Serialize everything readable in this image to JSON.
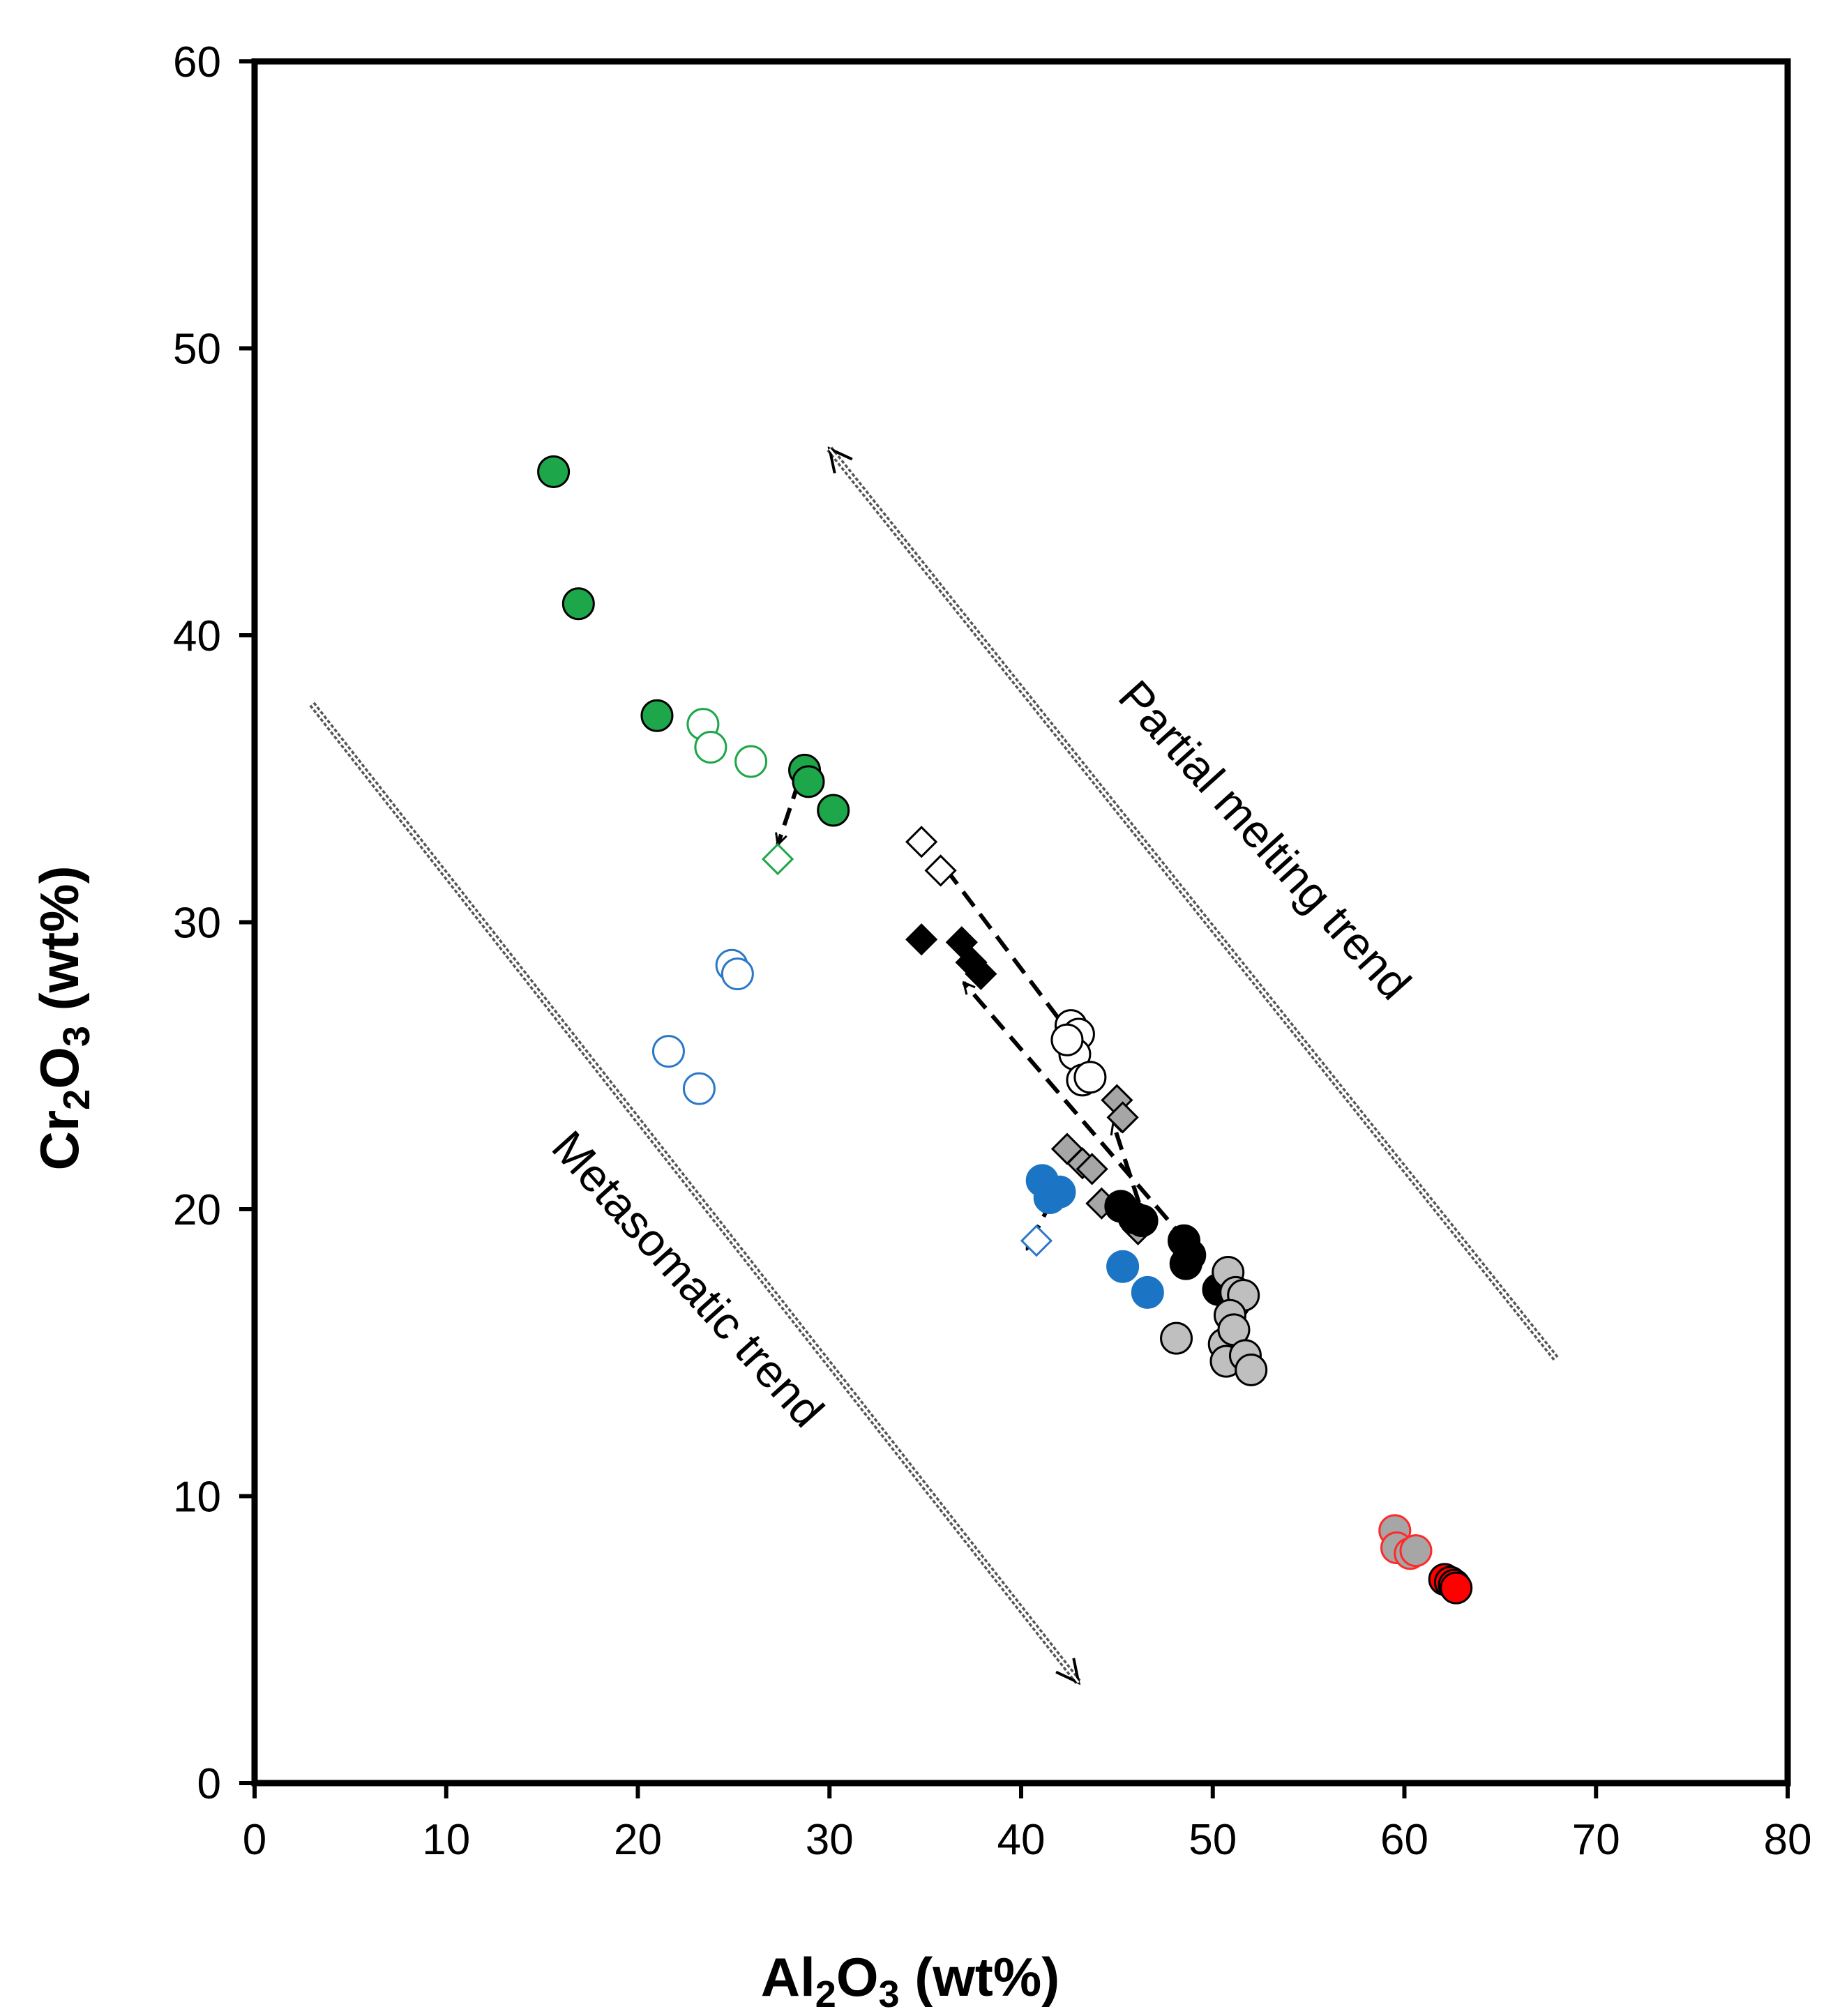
{
  "chart_data": {
    "type": "scatter",
    "title": "",
    "xlabel": {
      "main": "Al",
      "sub": "2",
      "tail_o": "O",
      "sub2": "3",
      "tail": " (wt%)"
    },
    "ylabel": {
      "main": "Cr",
      "sub": "2",
      "tail_o": "O",
      "sub2": "3",
      "tail": " (wt%)"
    },
    "xlim": [
      0,
      80
    ],
    "ylim": [
      0,
      60
    ],
    "x_ticks": [
      0,
      10,
      20,
      30,
      40,
      50,
      60,
      70,
      80
    ],
    "y_ticks": [
      0,
      10,
      20,
      30,
      40,
      50,
      60
    ],
    "x_tick_labels": [
      "0",
      "10",
      "20",
      "30",
      "40",
      "50",
      "60",
      "70",
      "80"
    ],
    "y_tick_labels": [
      "0",
      "10",
      "20",
      "30",
      "40",
      "50",
      "60"
    ],
    "grid": false,
    "legend": "none",
    "series": [
      {
        "name": "green-filled-circles",
        "marker": "circle",
        "fill": "#1ea64a",
        "stroke": "#000000",
        "points": [
          [
            15.6,
            45.7
          ],
          [
            16.9,
            41.1
          ],
          [
            21.0,
            37.2
          ],
          [
            28.7,
            35.3
          ],
          [
            28.9,
            34.9
          ],
          [
            30.2,
            33.9
          ]
        ]
      },
      {
        "name": "green-open-circles",
        "marker": "circle",
        "fill": "#ffffff",
        "stroke": "#1ea64a",
        "points": [
          [
            23.4,
            36.9
          ],
          [
            23.8,
            36.1
          ],
          [
            25.9,
            35.6
          ]
        ]
      },
      {
        "name": "green-open-diamond",
        "marker": "diamond",
        "fill": "#ffffff",
        "stroke": "#1ea64a",
        "points": [
          [
            27.3,
            32.2
          ]
        ]
      },
      {
        "name": "blue-open-circles",
        "marker": "circle",
        "fill": "#ffffff",
        "stroke": "#2c78c8",
        "points": [
          [
            24.9,
            28.5
          ],
          [
            25.2,
            28.2
          ],
          [
            21.6,
            25.5
          ],
          [
            23.2,
            24.2
          ]
        ]
      },
      {
        "name": "blue-filled-circles",
        "marker": "circle",
        "fill": "#1b74c4",
        "stroke": "#1b74c4",
        "points": [
          [
            41.1,
            21.0
          ],
          [
            41.5,
            20.4
          ],
          [
            42.0,
            20.6
          ],
          [
            45.3,
            18.0
          ],
          [
            46.6,
            17.1
          ]
        ]
      },
      {
        "name": "blue-open-diamond",
        "marker": "diamond",
        "fill": "#ffffff",
        "stroke": "#2c78c8",
        "points": [
          [
            40.8,
            18.9
          ]
        ]
      },
      {
        "name": "black-open-diamonds",
        "marker": "diamond",
        "fill": "#ffffff",
        "stroke": "#000000",
        "points": [
          [
            34.8,
            32.8
          ],
          [
            35.8,
            31.8
          ]
        ]
      },
      {
        "name": "black-filled-diamonds",
        "marker": "diamond",
        "fill": "#000000",
        "stroke": "#000000",
        "points": [
          [
            34.8,
            29.4
          ],
          [
            36.9,
            29.3
          ],
          [
            37.4,
            28.6
          ],
          [
            37.9,
            28.2
          ]
        ]
      },
      {
        "name": "open-circles",
        "marker": "circle",
        "fill": "#ffffff",
        "stroke": "#000000",
        "points": [
          [
            42.6,
            26.4
          ],
          [
            43.0,
            26.1
          ],
          [
            42.8,
            25.4
          ],
          [
            43.2,
            24.5
          ],
          [
            43.6,
            24.6
          ],
          [
            42.4,
            25.9
          ]
        ]
      },
      {
        "name": "grey-diamonds",
        "marker": "diamond",
        "fill": "#a6a6a6",
        "stroke": "#000000",
        "points": [
          [
            42.4,
            22.1
          ],
          [
            43.2,
            21.6
          ],
          [
            43.7,
            21.4
          ],
          [
            44.2,
            20.2
          ],
          [
            45.0,
            23.8
          ],
          [
            45.3,
            23.2
          ],
          [
            46.1,
            19.3
          ]
        ]
      },
      {
        "name": "black-filled-circles",
        "marker": "circle",
        "fill": "#000000",
        "stroke": "#000000",
        "points": [
          [
            45.2,
            20.1
          ],
          [
            45.9,
            19.7
          ],
          [
            46.3,
            19.6
          ],
          [
            48.5,
            18.9
          ],
          [
            48.8,
            18.4
          ],
          [
            48.6,
            18.1
          ],
          [
            50.3,
            17.2
          ],
          [
            51.1,
            16.7
          ]
        ]
      },
      {
        "name": "grey-circles",
        "marker": "circle",
        "fill": "#bfbfbf",
        "stroke": "#000000",
        "points": [
          [
            48.1,
            15.5
          ],
          [
            50.8,
            17.8
          ],
          [
            51.2,
            17.1
          ],
          [
            51.6,
            17.0
          ],
          [
            50.9,
            16.3
          ],
          [
            50.6,
            15.3
          ],
          [
            51.1,
            15.8
          ],
          [
            50.7,
            14.7
          ],
          [
            51.7,
            14.9
          ],
          [
            52.0,
            14.4
          ]
        ]
      },
      {
        "name": "grey-red-circles",
        "marker": "circle",
        "fill": "#a6a6a6",
        "stroke": "#ff2a2a",
        "points": [
          [
            59.5,
            8.8
          ],
          [
            59.6,
            8.2
          ],
          [
            60.3,
            8.0
          ],
          [
            60.6,
            8.1
          ]
        ]
      },
      {
        "name": "red-circles",
        "marker": "circle",
        "fill": "#ff0000",
        "stroke": "#000000",
        "points": [
          [
            62.1,
            7.1
          ],
          [
            62.4,
            7.0
          ],
          [
            62.6,
            6.9
          ],
          [
            62.7,
            6.8
          ]
        ]
      }
    ],
    "trend_lines": [
      {
        "name": "partial-melting-trend-arrow",
        "from": [
          67.9,
          14.8
        ],
        "to": [
          30.0,
          46.5
        ],
        "head": "end"
      },
      {
        "name": "metasomatic-trend-arrow",
        "from": [
          3.0,
          37.6
        ],
        "to": [
          43.0,
          3.5
        ],
        "head": "end"
      }
    ],
    "path_arrows": [
      {
        "name": "green-path-arrow",
        "from": [
          28.4,
          34.9
        ],
        "to": [
          27.3,
          32.7
        ]
      },
      {
        "name": "black-upper-path-arrow",
        "from": [
          42.8,
          25.9
        ],
        "to": [
          35.8,
          32.1
        ]
      },
      {
        "name": "black-lower-path-arrow",
        "from": [
          48.6,
          18.9
        ],
        "to": [
          37.0,
          27.9
        ]
      },
      {
        "name": "grey-path-arrow",
        "from": [
          46.6,
          19.3
        ],
        "to": [
          44.8,
          23.0
        ]
      },
      {
        "name": "blue-path-arrow",
        "from": [
          41.6,
          20.3
        ],
        "to": [
          40.3,
          18.6
        ]
      }
    ],
    "annotations": [
      {
        "name": "partial-melting-label",
        "text": "Partial melting trend",
        "at": [
          52.1,
          32.5
        ],
        "angle_deg": 48
      },
      {
        "name": "metasomatic-label",
        "text": "Metasomatic trend",
        "at": [
          22.0,
          17.2
        ],
        "angle_deg": 48
      }
    ]
  }
}
